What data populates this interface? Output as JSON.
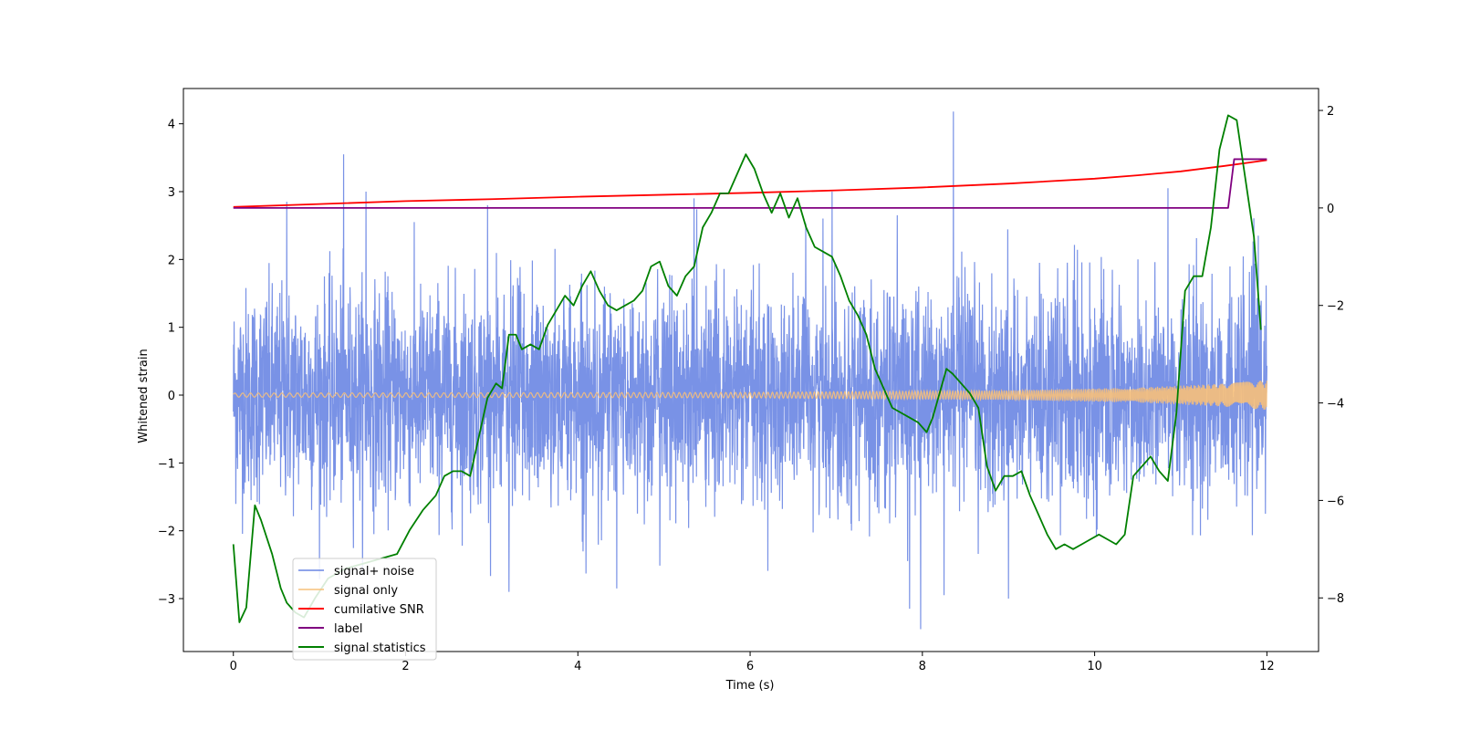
{
  "chart_data": {
    "type": "line",
    "title": "",
    "xlabel": "Time (s)",
    "ylabel": "Whitened strain",
    "xlim": [
      -0.58,
      12.6
    ],
    "ylim": [
      -3.78,
      4.52
    ],
    "y2lim": [
      -9.1,
      2.45
    ],
    "xticks": [
      {
        "value": 0,
        "label": "0"
      },
      {
        "value": 2,
        "label": "2"
      },
      {
        "value": 4,
        "label": "4"
      },
      {
        "value": 6,
        "label": "6"
      },
      {
        "value": 8,
        "label": "8"
      },
      {
        "value": 10,
        "label": "10"
      },
      {
        "value": 12,
        "label": "12"
      }
    ],
    "yticks": [
      {
        "value": -3,
        "label": "−3"
      },
      {
        "value": -2,
        "label": "−2"
      },
      {
        "value": -1,
        "label": "−1"
      },
      {
        "value": 0,
        "label": "0"
      },
      {
        "value": 1,
        "label": "1"
      },
      {
        "value": 2,
        "label": "2"
      },
      {
        "value": 3,
        "label": "3"
      },
      {
        "value": 4,
        "label": "4"
      }
    ],
    "y2ticks": [
      {
        "value": -8,
        "label": "−8"
      },
      {
        "value": -6,
        "label": "−6"
      },
      {
        "value": -4,
        "label": "−4"
      },
      {
        "value": -2,
        "label": "−2"
      },
      {
        "value": 0,
        "label": "0"
      },
      {
        "value": 2,
        "label": "2"
      }
    ],
    "legend_position": "lower-left",
    "series": [
      {
        "name": "signal+ noise",
        "color": "#6a86e3",
        "axis": "left",
        "kind": "noise",
        "amplitude_std": 0.95,
        "spikes": [
          {
            "x": 0.62,
            "y": 2.85
          },
          {
            "x": 1.28,
            "y": 3.55
          },
          {
            "x": 1.54,
            "y": 3.0
          },
          {
            "x": 2.95,
            "y": 2.8
          },
          {
            "x": 5.35,
            "y": 2.9
          },
          {
            "x": 6.95,
            "y": 3.0
          },
          {
            "x": 8.36,
            "y": 4.18
          },
          {
            "x": 7.98,
            "y": -3.45
          },
          {
            "x": 7.85,
            "y": -3.15
          },
          {
            "x": 3.2,
            "y": -2.9
          },
          {
            "x": 4.45,
            "y": -2.85
          },
          {
            "x": 8.25,
            "y": -2.95
          },
          {
            "x": 10.85,
            "y": 3.05
          },
          {
            "x": 9.0,
            "y": -3.0
          },
          {
            "x": 11.9,
            "y": 2.35
          }
        ]
      },
      {
        "name": "signal only",
        "color": "#f7c07a",
        "axis": "left",
        "kind": "chirp",
        "envelope": [
          {
            "x": 0,
            "y": 0.03
          },
          {
            "x": 6,
            "y": 0.04
          },
          {
            "x": 9,
            "y": 0.07
          },
          {
            "x": 10.5,
            "y": 0.11
          },
          {
            "x": 11.5,
            "y": 0.17
          },
          {
            "x": 12,
            "y": 0.22
          }
        ]
      },
      {
        "name": "cumilative SNR",
        "color": "#ff0000",
        "axis": "right",
        "x": [
          0,
          1,
          2,
          3,
          4,
          5,
          6,
          7,
          8,
          9,
          10,
          10.5,
          11,
          11.5,
          12
        ],
        "values": [
          0.02,
          0.08,
          0.14,
          0.18,
          0.23,
          0.27,
          0.31,
          0.36,
          0.42,
          0.5,
          0.6,
          0.67,
          0.75,
          0.86,
          0.98
        ]
      },
      {
        "name": "label",
        "color": "#800080",
        "axis": "right",
        "x": [
          0,
          11.55,
          11.62,
          12
        ],
        "values": [
          0,
          0,
          1,
          1
        ]
      },
      {
        "name": "signal statistics",
        "color": "#008000",
        "axis": "right",
        "x": [
          0,
          0.07,
          0.15,
          0.25,
          0.32,
          0.45,
          0.55,
          0.62,
          0.72,
          0.82,
          0.95,
          1.1,
          1.3,
          1.5,
          1.7,
          1.9,
          2.05,
          2.2,
          2.35,
          2.45,
          2.55,
          2.65,
          2.75,
          2.85,
          2.95,
          3.05,
          3.12,
          3.2,
          3.28,
          3.35,
          3.45,
          3.55,
          3.65,
          3.75,
          3.85,
          3.95,
          4.05,
          4.15,
          4.25,
          4.35,
          4.45,
          4.55,
          4.65,
          4.75,
          4.85,
          4.95,
          5.05,
          5.15,
          5.25,
          5.35,
          5.45,
          5.55,
          5.65,
          5.75,
          5.85,
          5.95,
          6.05,
          6.15,
          6.25,
          6.35,
          6.45,
          6.55,
          6.65,
          6.75,
          6.85,
          6.95,
          7.05,
          7.15,
          7.25,
          7.35,
          7.45,
          7.55,
          7.65,
          7.75,
          7.85,
          7.95,
          8.05,
          8.12,
          8.2,
          8.28,
          8.35,
          8.45,
          8.55,
          8.65,
          8.75,
          8.85,
          8.95,
          9.05,
          9.15,
          9.25,
          9.35,
          9.45,
          9.55,
          9.65,
          9.75,
          9.85,
          9.95,
          10.05,
          10.15,
          10.25,
          10.35,
          10.45,
          10.55,
          10.65,
          10.75,
          10.85,
          10.95,
          11.05,
          11.15,
          11.25,
          11.35,
          11.45,
          11.55,
          11.65,
          11.75,
          11.85,
          11.93
        ],
        "values": [
          -6.9,
          -8.5,
          -8.2,
          -6.1,
          -6.4,
          -7.1,
          -7.8,
          -8.1,
          -8.3,
          -8.4,
          -8.0,
          -7.6,
          -7.4,
          -7.3,
          -7.2,
          -7.1,
          -6.6,
          -6.2,
          -5.9,
          -5.5,
          -5.4,
          -5.4,
          -5.5,
          -4.7,
          -3.9,
          -3.6,
          -3.7,
          -2.6,
          -2.6,
          -2.9,
          -2.8,
          -2.9,
          -2.4,
          -2.1,
          -1.8,
          -2.0,
          -1.6,
          -1.3,
          -1.7,
          -2.0,
          -2.1,
          -2.0,
          -1.9,
          -1.7,
          -1.2,
          -1.1,
          -1.6,
          -1.8,
          -1.4,
          -1.2,
          -0.4,
          -0.1,
          0.3,
          0.3,
          0.7,
          1.1,
          0.8,
          0.3,
          -0.1,
          0.3,
          -0.2,
          0.2,
          -0.4,
          -0.8,
          -0.9,
          -1.0,
          -1.4,
          -1.9,
          -2.2,
          -2.6,
          -3.3,
          -3.7,
          -4.1,
          -4.2,
          -4.3,
          -4.4,
          -4.6,
          -4.3,
          -3.8,
          -3.3,
          -3.4,
          -3.6,
          -3.8,
          -4.1,
          -5.3,
          -5.8,
          -5.5,
          -5.5,
          -5.4,
          -5.9,
          -6.3,
          -6.7,
          -7.0,
          -6.9,
          -7.0,
          -6.9,
          -6.8,
          -6.7,
          -6.8,
          -6.9,
          -6.7,
          -5.5,
          -5.3,
          -5.1,
          -5.4,
          -5.6,
          -4.2,
          -1.7,
          -1.4,
          -1.4,
          -0.4,
          1.2,
          1.9,
          1.8,
          0.6,
          -0.6,
          -2.5
        ]
      }
    ]
  }
}
